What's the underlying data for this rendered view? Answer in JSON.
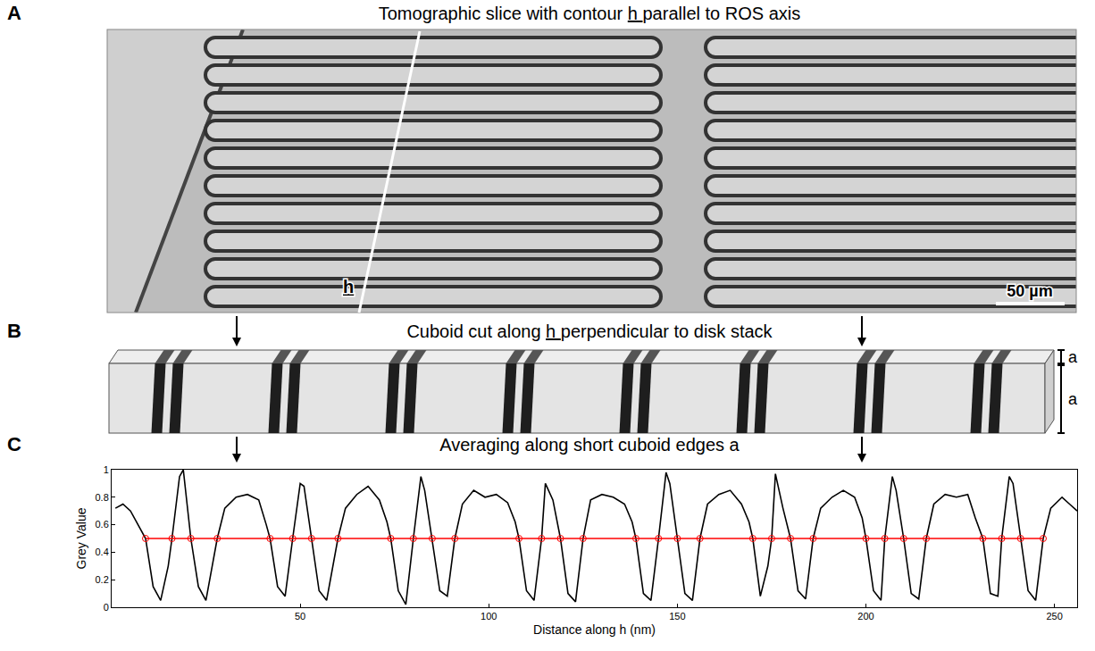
{
  "figure": {
    "panels": [
      {
        "letter": "A",
        "title": "Tomographic slice with contour h parallel to ROS axis",
        "contour_label": "h",
        "scale_bar": "50 µm"
      },
      {
        "letter": "B",
        "title": "Cuboid cut along h perpendicular to disk stack",
        "edge_label": "a"
      },
      {
        "letter": "C",
        "title": "Averaging along short cuboid edges a"
      }
    ]
  },
  "chart_data": {
    "type": "line",
    "x_label": "Distance along h (nm)",
    "y_label": "Grey Value",
    "xlim": [
      0,
      256
    ],
    "xticks": [
      50,
      100,
      150,
      200,
      250
    ],
    "ylim": [
      0,
      1
    ],
    "yticks": [
      0,
      0.2,
      0.4,
      0.6,
      0.8,
      1
    ],
    "grid": false,
    "series": [
      {
        "color": "#000000",
        "line_style": "solid",
        "x": [
          1,
          3,
          5,
          7,
          9,
          11,
          13,
          15,
          16,
          18,
          19,
          20,
          21,
          23,
          25,
          27,
          28,
          30,
          33,
          36,
          39,
          41,
          42,
          44,
          46,
          48,
          50,
          51,
          53,
          55,
          57,
          59,
          60,
          62,
          65,
          68,
          71,
          73,
          74,
          76,
          78,
          80,
          82,
          83,
          85,
          87,
          89,
          91,
          93,
          96,
          99,
          102,
          105,
          107,
          108,
          110,
          112,
          114,
          115,
          117,
          119,
          121,
          123,
          125,
          127,
          130,
          133,
          136,
          138,
          139,
          141,
          143,
          145,
          147,
          148,
          150,
          152,
          154,
          156,
          158,
          161,
          164,
          167,
          169,
          170,
          172,
          174,
          175,
          176,
          178,
          180,
          182,
          184,
          186,
          188,
          191,
          194,
          197,
          199,
          200,
          202,
          204,
          205,
          207,
          208,
          210,
          212,
          214,
          216,
          218,
          221,
          224,
          227,
          229,
          231,
          233,
          235,
          236,
          238,
          239,
          241,
          243,
          245,
          247,
          249,
          252,
          254,
          256
        ],
        "values": [
          0.72,
          0.75,
          0.7,
          0.6,
          0.5,
          0.15,
          0.05,
          0.3,
          0.5,
          0.95,
          1.0,
          0.75,
          0.5,
          0.15,
          0.05,
          0.35,
          0.5,
          0.72,
          0.8,
          0.82,
          0.78,
          0.6,
          0.5,
          0.15,
          0.08,
          0.5,
          0.9,
          0.88,
          0.5,
          0.12,
          0.05,
          0.35,
          0.5,
          0.72,
          0.82,
          0.88,
          0.78,
          0.62,
          0.5,
          0.12,
          0.02,
          0.5,
          0.95,
          0.85,
          0.5,
          0.12,
          0.08,
          0.5,
          0.75,
          0.85,
          0.8,
          0.82,
          0.76,
          0.62,
          0.5,
          0.12,
          0.05,
          0.5,
          0.9,
          0.78,
          0.5,
          0.1,
          0.04,
          0.5,
          0.78,
          0.82,
          0.8,
          0.75,
          0.62,
          0.5,
          0.1,
          0.05,
          0.5,
          0.98,
          0.9,
          0.5,
          0.1,
          0.05,
          0.5,
          0.75,
          0.82,
          0.85,
          0.75,
          0.62,
          0.5,
          0.08,
          0.3,
          0.5,
          0.97,
          0.72,
          0.5,
          0.12,
          0.06,
          0.5,
          0.72,
          0.8,
          0.85,
          0.8,
          0.65,
          0.5,
          0.12,
          0.05,
          0.5,
          0.95,
          0.85,
          0.5,
          0.1,
          0.06,
          0.5,
          0.75,
          0.82,
          0.8,
          0.82,
          0.65,
          0.5,
          0.1,
          0.08,
          0.5,
          0.95,
          0.9,
          0.5,
          0.12,
          0.05,
          0.5,
          0.72,
          0.8,
          0.75,
          0.7
        ]
      },
      {
        "color": "#ff0000",
        "line_style": "solid",
        "marker": "circle-open",
        "x": [
          9,
          16,
          21,
          28,
          42,
          48,
          53,
          60,
          74,
          80,
          85,
          91,
          108,
          114,
          119,
          125,
          139,
          145,
          150,
          156,
          170,
          175,
          180,
          186,
          200,
          205,
          210,
          216,
          231,
          236,
          241,
          247
        ],
        "values": [
          0.5,
          0.5,
          0.5,
          0.5,
          0.5,
          0.5,
          0.5,
          0.5,
          0.5,
          0.5,
          0.5,
          0.5,
          0.5,
          0.5,
          0.5,
          0.5,
          0.5,
          0.5,
          0.5,
          0.5,
          0.5,
          0.5,
          0.5,
          0.5,
          0.5,
          0.5,
          0.5,
          0.5,
          0.5,
          0.5,
          0.5,
          0.5
        ]
      }
    ]
  }
}
